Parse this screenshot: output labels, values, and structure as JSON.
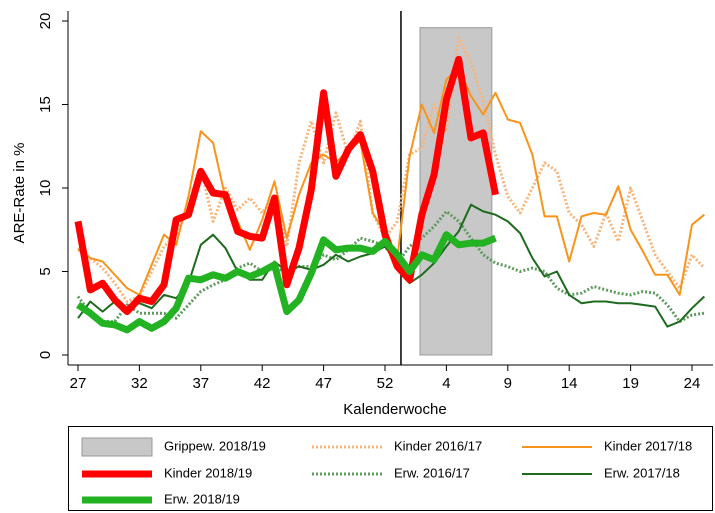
{
  "chart_data": {
    "type": "line",
    "x_label": "Kalenderwoche",
    "y_label": "ARE-Rate in %",
    "categories": [
      "27",
      null,
      null,
      null,
      null,
      "32",
      null,
      null,
      null,
      null,
      "37",
      null,
      null,
      null,
      null,
      "42",
      null,
      null,
      null,
      null,
      "47",
      null,
      null,
      null,
      null,
      "52",
      null,
      null,
      null,
      null,
      "4",
      null,
      null,
      null,
      null,
      "9",
      null,
      null,
      null,
      null,
      "14",
      null,
      null,
      null,
      null,
      "19",
      null,
      null,
      null,
      null,
      "24",
      null
    ],
    "ylim": [
      -0.6,
      20
    ],
    "yticks": [
      0,
      5,
      10,
      15,
      20
    ],
    "bands": [
      {
        "name": "Grippew. 2018/19",
        "color": "#c8c8c8",
        "x": [
          27.85,
          33.7
        ],
        "y": [
          0,
          19.6
        ]
      }
    ],
    "series": [
      {
        "name": "Kinder 2016/17",
        "color": "#f8b47a",
        "dash": true,
        "width": 3,
        "values": [
          6.4,
          5.8,
          5.2,
          4.3,
          3.2,
          3.5,
          5.0,
          6.5,
          7.2,
          8.8,
          11.2,
          8.0,
          10.0,
          8.7,
          9.4,
          8.5,
          9.5,
          6.5,
          11.5,
          14.0,
          11.5,
          14.5,
          12.0,
          14.0,
          8.5,
          7.0,
          8.0,
          12.0,
          12.4,
          15.0,
          13.5,
          19.0,
          17.5,
          15.2,
          12.0,
          9.5,
          8.5,
          10.0,
          11.5,
          11.0,
          8.5,
          7.8,
          6.5,
          8.5,
          6.8,
          10.0,
          8.0,
          6.0,
          5.0,
          4.0,
          6.0,
          5.2
        ]
      },
      {
        "name": "Kinder 2017/18",
        "color": "#f7941d",
        "dash": false,
        "width": 2,
        "values": [
          6.3,
          5.8,
          5.6,
          4.8,
          4.0,
          3.6,
          5.4,
          7.2,
          6.6,
          9.5,
          13.4,
          12.7,
          9.4,
          8.0,
          6.3,
          8.1,
          10.4,
          7.0,
          9.6,
          11.5,
          12.0,
          11.5,
          12.3,
          12.8,
          8.5,
          7.3,
          5.8,
          11.9,
          15.0,
          13.3,
          16.5,
          17.2,
          15.5,
          14.4,
          15.7,
          14.1,
          13.9,
          12.0,
          8.3,
          8.3,
          5.6,
          8.3,
          8.5,
          8.4,
          10.1,
          7.5,
          6.2,
          4.8,
          4.8,
          3.6,
          7.8,
          8.4
        ]
      },
      {
        "name": "Kinder 2018/19",
        "color": "#ff0000",
        "dash": false,
        "width": 7,
        "values": [
          8.0,
          3.9,
          4.3,
          3.3,
          2.6,
          3.4,
          3.2,
          4.2,
          8.1,
          8.4,
          11.0,
          9.7,
          9.6,
          7.4,
          7.1,
          7.0,
          9.4,
          4.2,
          6.4,
          9.9,
          15.7,
          10.7,
          12.3,
          13.2,
          11.0,
          7.2,
          5.3,
          4.5,
          8.4,
          10.8,
          15.3,
          17.7,
          13.0,
          13.3,
          9.6,
          null,
          null,
          null,
          null,
          null,
          null,
          null,
          null,
          null,
          null,
          null,
          null,
          null,
          null,
          null,
          null,
          null
        ]
      },
      {
        "name": "Erw. 2016/17",
        "color": "#5f9a5f",
        "dash": true,
        "width": 3,
        "values": [
          3.5,
          2.5,
          2.0,
          2.0,
          3.0,
          2.5,
          2.5,
          2.5,
          2.2,
          3.0,
          3.8,
          4.2,
          4.5,
          5.2,
          5.5,
          5.0,
          5.2,
          5.0,
          5.3,
          5.3,
          6.0,
          5.7,
          6.3,
          7.0,
          6.8,
          6.5,
          5.5,
          6.5,
          7.0,
          7.7,
          8.6,
          8.0,
          7.0,
          6.0,
          5.5,
          5.3,
          5.0,
          5.2,
          5.0,
          4.0,
          3.6,
          3.7,
          4.1,
          3.9,
          3.7,
          3.6,
          3.8,
          3.7,
          3.0,
          2.0,
          2.4,
          2.5
        ]
      },
      {
        "name": "Erw. 2017/18",
        "color": "#1e6b1e",
        "dash": false,
        "width": 2,
        "values": [
          2.2,
          3.2,
          2.6,
          3.2,
          2.8,
          3.1,
          2.8,
          3.6,
          3.4,
          4.3,
          6.6,
          7.2,
          6.4,
          5.0,
          4.5,
          4.5,
          5.6,
          5.0,
          5.3,
          5.1,
          5.4,
          6.0,
          5.6,
          5.9,
          6.1,
          6.5,
          5.5,
          4.3,
          4.8,
          5.5,
          6.5,
          7.4,
          9.0,
          8.6,
          8.4,
          8.0,
          7.3,
          5.8,
          4.7,
          5.0,
          3.6,
          3.1,
          3.2,
          3.2,
          3.1,
          3.1,
          3.0,
          2.9,
          1.7,
          2.0,
          2.8,
          3.5
        ]
      },
      {
        "name": "Erw. 2018/19",
        "color": "#22b222",
        "dash": false,
        "width": 7,
        "values": [
          3.0,
          2.5,
          1.9,
          1.8,
          1.5,
          2.0,
          1.6,
          2.0,
          2.8,
          4.6,
          4.5,
          4.8,
          4.6,
          5.0,
          4.7,
          5.0,
          5.4,
          2.6,
          3.3,
          4.9,
          6.9,
          6.3,
          6.4,
          6.4,
          6.2,
          6.8,
          6.0,
          5.0,
          6.0,
          5.7,
          7.2,
          6.6,
          6.7,
          6.7,
          7.0,
          null,
          null,
          null,
          null,
          null,
          null,
          null,
          null,
          null,
          null,
          null,
          null,
          null,
          null,
          null,
          null,
          null
        ]
      }
    ]
  }
}
